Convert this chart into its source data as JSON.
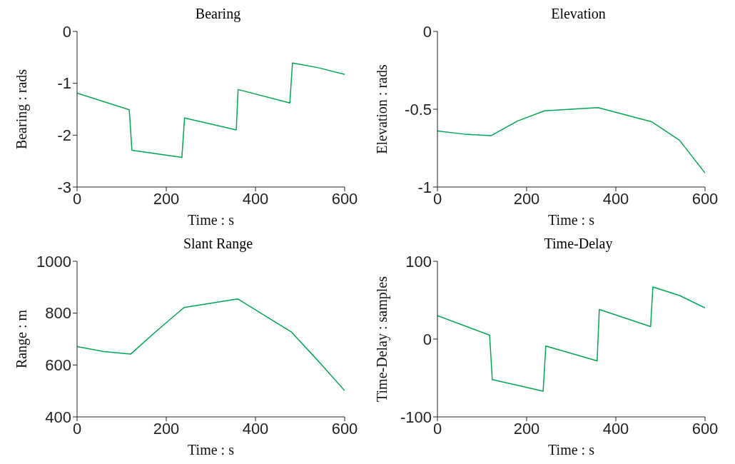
{
  "chart_data": [
    {
      "type": "line",
      "title": "Bearing",
      "xlabel": "Time : s",
      "ylabel": "Bearing : rads",
      "x": [
        0,
        117,
        123,
        235,
        241,
        357,
        361,
        477,
        483,
        541,
        600
      ],
      "series": [
        {
          "color": "#00a651",
          "values": [
            -1.19,
            -1.51,
            -2.29,
            -2.43,
            -1.67,
            -1.9,
            -1.12,
            -1.38,
            -0.61,
            -0.7,
            -0.83
          ]
        }
      ],
      "xlim": [
        0,
        600
      ],
      "xticks": [
        0,
        200,
        400,
        600
      ],
      "ylim": [
        -3,
        0
      ],
      "yticks": [
        -3,
        -2,
        -1,
        0
      ]
    },
    {
      "type": "line",
      "title": "Elevation",
      "xlabel": "Time : s",
      "ylabel": "Elevation : rads",
      "x": [
        0,
        60,
        120,
        180,
        240,
        360,
        480,
        543,
        600
      ],
      "series": [
        {
          "color": "#00a651",
          "values": [
            -0.64,
            -0.66,
            -0.67,
            -0.575,
            -0.51,
            -0.49,
            -0.58,
            -0.7,
            -0.91
          ]
        }
      ],
      "xlim": [
        0,
        600
      ],
      "xticks": [
        0,
        200,
        400,
        600
      ],
      "ylim": [
        -1,
        0
      ],
      "yticks": [
        -1,
        -0.5,
        0
      ]
    },
    {
      "type": "line",
      "title": "Slant Range",
      "xlabel": "Time : s",
      "ylabel": "Range : m",
      "x": [
        0,
        60,
        120,
        178,
        240,
        360,
        480,
        541,
        600
      ],
      "series": [
        {
          "color": "#00a651",
          "values": [
            671,
            652,
            642,
            731,
            822,
            855,
            728,
            615,
            501
          ]
        }
      ],
      "xlim": [
        0,
        600
      ],
      "xticks": [
        0,
        200,
        400,
        600
      ],
      "ylim": [
        400,
        1000
      ],
      "yticks": [
        400,
        600,
        800,
        1000
      ]
    },
    {
      "type": "line",
      "title": "Time-Delay",
      "xlabel": "Time : s",
      "ylabel": "Time-Delay : samples",
      "x": [
        0,
        117,
        123,
        237,
        243,
        358,
        363,
        478,
        483,
        543,
        600
      ],
      "series": [
        {
          "color": "#00a651",
          "values": [
            30,
            5,
            -52,
            -67,
            -9,
            -28,
            38,
            16,
            67,
            56,
            40
          ]
        }
      ],
      "xlim": [
        0,
        600
      ],
      "xticks": [
        0,
        200,
        400,
        600
      ],
      "ylim": [
        -100,
        100
      ],
      "yticks": [
        -100,
        0,
        100
      ]
    }
  ]
}
